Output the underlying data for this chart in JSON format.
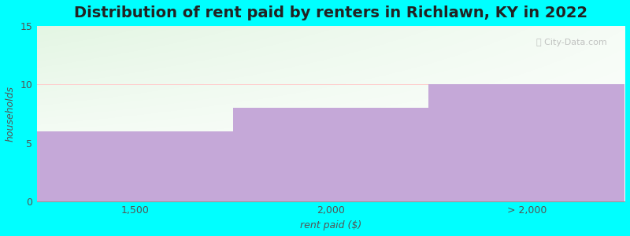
{
  "categories": [
    "1,500",
    "2,000",
    "> 2,000"
  ],
  "values": [
    6,
    8,
    10
  ],
  "bar_color": "#C5A8D8",
  "title": "Distribution of rent paid by renters in Richlawn, KY in 2022",
  "xlabel": "rent paid ($)",
  "ylabel": "households",
  "ylim": [
    0,
    15
  ],
  "yticks": [
    0,
    5,
    10,
    15
  ],
  "background_outer": "#00FFFF",
  "title_fontsize": 14,
  "axis_label_fontsize": 9,
  "tick_fontsize": 9
}
